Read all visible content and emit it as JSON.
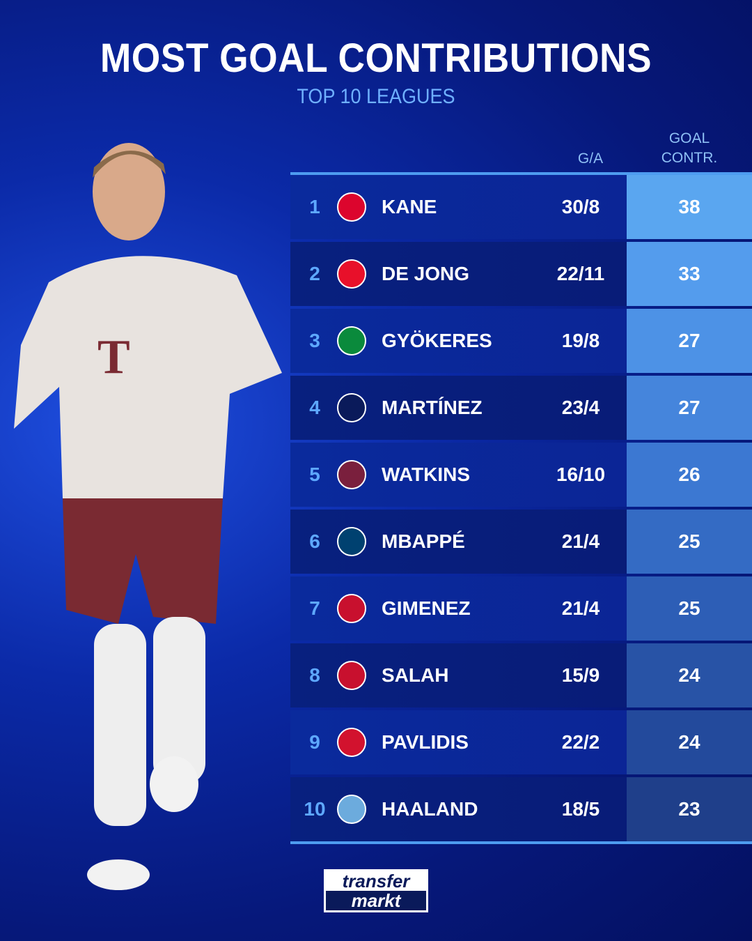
{
  "title": "MOST GOAL CONTRIBUTIONS",
  "subtitle": "TOP 10 LEAGUES",
  "headers": {
    "ga": "G/A",
    "goal_contr_1": "GOAL",
    "goal_contr_2": "CONTR."
  },
  "rows": [
    {
      "rank": "1",
      "club": "fc-bayern-crest",
      "name": "KANE",
      "ga": "30/8",
      "gc": "38",
      "crest_color": "#dc052d",
      "gc_color": "#5aa6f0"
    },
    {
      "rank": "2",
      "club": "psv-crest",
      "name": "DE JONG",
      "ga": "22/11",
      "gc": "33",
      "crest_color": "#e8102a",
      "gc_color": "#549ced"
    },
    {
      "rank": "3",
      "club": "sporting-cp-crest",
      "name": "GYÖKERES",
      "ga": "19/8",
      "gc": "27",
      "crest_color": "#0a8a3c",
      "gc_color": "#4d92e6"
    },
    {
      "rank": "4",
      "club": "inter-crest",
      "name": "MARTÍNEZ",
      "ga": "23/4",
      "gc": "27",
      "crest_color": "#0a1a5a",
      "gc_color": "#4585dc"
    },
    {
      "rank": "5",
      "club": "aston-villa-crest",
      "name": "WATKINS",
      "ga": "16/10",
      "gc": "26",
      "crest_color": "#7a1f3d",
      "gc_color": "#3c78d2"
    },
    {
      "rank": "6",
      "club": "psg-crest",
      "name": "MBAPPÉ",
      "ga": "21/4",
      "gc": "25",
      "crest_color": "#004170",
      "gc_color": "#346bc4"
    },
    {
      "rank": "7",
      "club": "feyenoord-crest",
      "name": "GIMENEZ",
      "ga": "21/4",
      "gc": "25",
      "crest_color": "#c8102e",
      "gc_color": "#2d5eb6"
    },
    {
      "rank": "8",
      "club": "liverpool-crest",
      "name": "SALAH",
      "ga": "15/9",
      "gc": "24",
      "crest_color": "#c8102e",
      "gc_color": "#2853a6"
    },
    {
      "rank": "9",
      "club": "az-alkmaar-crest",
      "name": "PAVLIDIS",
      "ga": "22/2",
      "gc": "24",
      "crest_color": "#d2122e",
      "gc_color": "#234a9c"
    },
    {
      "rank": "10",
      "club": "manchester-city-crest",
      "name": "HAALAND",
      "ga": "18/5",
      "gc": "23",
      "crest_color": "#6cabdd",
      "gc_color": "#1f3f8a"
    }
  ],
  "logo": {
    "line1": "transfer",
    "line2": "markt"
  }
}
